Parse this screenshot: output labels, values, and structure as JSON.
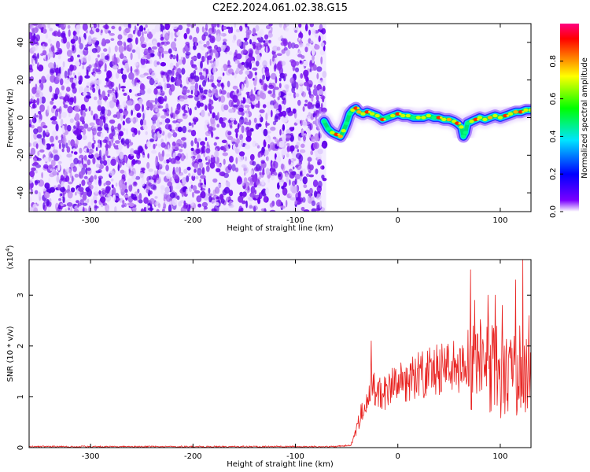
{
  "title": "C2E2.2024.061.02.38.G15",
  "chart_data": [
    {
      "type": "heatmap",
      "name": "spectrogram",
      "xlabel": "Height of straight line (km)",
      "ylabel": "Frequency (Hz)",
      "xlim": [
        -360,
        130
      ],
      "ylim": [
        -50,
        50
      ],
      "xticks": [
        -300,
        -200,
        -100,
        0,
        100
      ],
      "yticks": [
        -40,
        -20,
        0,
        20,
        40
      ],
      "noise_region_x": [
        -360,
        -70
      ],
      "signal_track": {
        "x": [
          -72,
          -68,
          -64,
          -60,
          -56,
          -53,
          -50,
          -47,
          -44,
          -41,
          -38,
          -34,
          -30,
          -25,
          -20,
          -15,
          -10,
          -5,
          0,
          5,
          10,
          15,
          20,
          25,
          30,
          35,
          40,
          45,
          50,
          55,
          58,
          62,
          64,
          66,
          68,
          72,
          76,
          80,
          85,
          90,
          95,
          100,
          105,
          110,
          115,
          120,
          125,
          130
        ],
        "y": [
          -2,
          -6,
          -8,
          -9,
          -10,
          -7,
          -3,
          2,
          4,
          5,
          3,
          2,
          3,
          2,
          1,
          -1,
          0,
          1,
          2,
          1,
          1,
          0,
          0,
          0,
          1,
          0,
          0,
          -1,
          -1,
          -2,
          -3,
          -5,
          -10,
          -8,
          -3,
          -2,
          -1,
          0,
          -1,
          0,
          1,
          0,
          1,
          2,
          3,
          3,
          4,
          4
        ],
        "amplitude": [
          0.3,
          0.5,
          0.7,
          0.9,
          0.8,
          0.6,
          0.4,
          0.5,
          0.7,
          0.9,
          0.8,
          0.6,
          0.9,
          0.7,
          0.6,
          0.9,
          0.5,
          0.6,
          0.9,
          0.7,
          0.6,
          0.5,
          0.6,
          0.7,
          0.6,
          0.5,
          0.9,
          0.6,
          0.8,
          0.7,
          0.9,
          0.7,
          0.5,
          0.4,
          0.5,
          0.6,
          0.9,
          0.7,
          0.6,
          0.8,
          0.7,
          0.6,
          0.9,
          0.7,
          0.8,
          0.9,
          0.7,
          0.6
        ]
      },
      "colorbar": {
        "label": "Normalized spectral amplitude",
        "range": [
          0,
          1
        ],
        "ticks": [
          "0.0",
          "0.2",
          "0.4",
          "0.6",
          "0.8"
        ],
        "tick_values": [
          0,
          0.2,
          0.4,
          0.6,
          0.8
        ],
        "colors": [
          "#ffffff",
          "#7a00ff",
          "#0000ff",
          "#00e5ff",
          "#00ff00",
          "#ffff00",
          "#ff7f00",
          "#ff0000",
          "#ff0080"
        ]
      }
    },
    {
      "type": "line",
      "name": "snr",
      "xlabel": "Height of straight line (km)",
      "ylabel": "SNR (10 * v/v)",
      "yscale_label": "(x10",
      "yscale_exp": "4",
      "xlim": [
        -360,
        130
      ],
      "ylim": [
        0,
        3.7
      ],
      "xticks": [
        -300,
        -200,
        -100,
        0,
        100
      ],
      "yticks": [
        0,
        1,
        2,
        3
      ],
      "color": "#e8201e",
      "envelope": {
        "x": [
          -360,
          -60,
          -46,
          -40,
          -35,
          -30,
          -25,
          -20,
          -15,
          -10,
          -5,
          0,
          5,
          10,
          20,
          30,
          40,
          50,
          60,
          70,
          72,
          75,
          80,
          85,
          90,
          95,
          100,
          105,
          110,
          115,
          120,
          125,
          130
        ],
        "y": [
          0.02,
          0.02,
          0.05,
          0.5,
          0.9,
          1.1,
          1.3,
          1.4,
          1.25,
          1.35,
          1.45,
          1.5,
          1.55,
          1.6,
          1.75,
          1.8,
          1.85,
          1.9,
          1.95,
          2.0,
          2.3,
          2.4,
          2.2,
          2.1,
          2.0,
          2.1,
          1.9,
          2.0,
          1.8,
          1.9,
          1.7,
          1.8,
          1.8
        ]
      },
      "peaks": {
        "x": [
          -26,
          71,
          75,
          88,
          95,
          102,
          104,
          115,
          119,
          122,
          128
        ],
        "y": [
          2.1,
          3.5,
          2.9,
          3.0,
          3.0,
          2.8,
          2.0,
          3.3,
          2.4,
          3.7,
          2.6
        ]
      }
    }
  ]
}
